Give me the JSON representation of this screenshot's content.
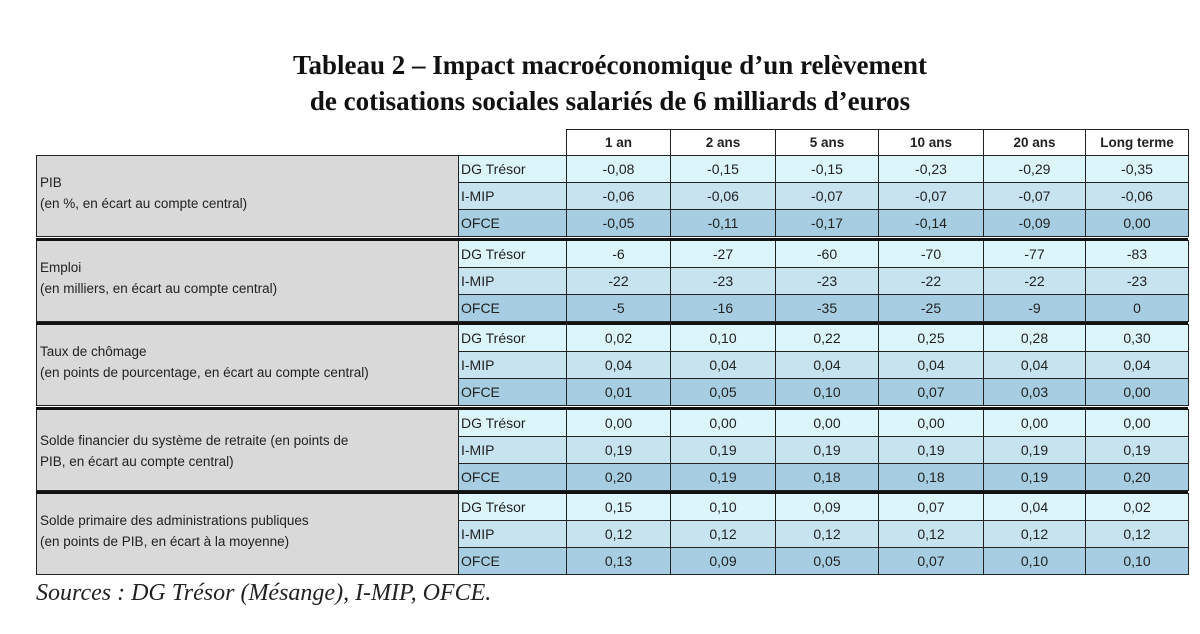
{
  "title": [
    "Tableau 2 – Impact macroéconomique d’un relèvement",
    "de cotisations sociales salariés de 6 milliards d’euros"
  ],
  "table": {
    "columns": [
      "1 an",
      "2 ans",
      "5 ans",
      "10 ans",
      "20 ans",
      "Long terme"
    ],
    "groups": [
      {
        "label": [
          "PIB",
          "(en %, en écart au compte central)"
        ],
        "rows": [
          {
            "model": "DG Trésor",
            "values": [
              "-0,08",
              "-0,15",
              "-0,15",
              "-0,23",
              "-0,29",
              "-0,35"
            ]
          },
          {
            "model": "I-MIP",
            "values": [
              "-0,06",
              "-0,06",
              "-0,07",
              "-0,07",
              "-0,07",
              "-0,06"
            ]
          },
          {
            "model": "OFCE",
            "values": [
              "-0,05",
              "-0,11",
              "-0,17",
              "-0,14",
              "-0,09",
              "0,00"
            ]
          }
        ]
      },
      {
        "label": [
          "Emploi",
          "(en milliers, en écart au compte central)"
        ],
        "rows": [
          {
            "model": "DG Trésor",
            "values": [
              "-6",
              "-27",
              "-60",
              "-70",
              "-77",
              "-83"
            ]
          },
          {
            "model": "I-MIP",
            "values": [
              "-22",
              "-23",
              "-23",
              "-22",
              "-22",
              "-23"
            ]
          },
          {
            "model": "OFCE",
            "values": [
              "-5",
              "-16",
              "-35",
              "-25",
              "-9",
              "0"
            ]
          }
        ]
      },
      {
        "label": [
          "Taux de chômage",
          "(en points de pourcentage, en écart au compte central)"
        ],
        "rows": [
          {
            "model": "DG Trésor",
            "values": [
              "0,02",
              "0,10",
              "0,22",
              "0,25",
              "0,28",
              "0,30"
            ]
          },
          {
            "model": "I-MIP",
            "values": [
              "0,04",
              "0,04",
              "0,04",
              "0,04",
              "0,04",
              "0,04"
            ]
          },
          {
            "model": "OFCE",
            "values": [
              "0,01",
              "0,05",
              "0,10",
              "0,07",
              "0,03",
              "0,00"
            ]
          }
        ]
      },
      {
        "label": [
          "Solde financier du système de retraite (en points de",
          "PIB, en écart au compte central)"
        ],
        "rows": [
          {
            "model": "DG Trésor",
            "values": [
              "0,00",
              "0,00",
              "0,00",
              "0,00",
              "0,00",
              "0,00"
            ]
          },
          {
            "model": "I-MIP",
            "values": [
              "0,19",
              "0,19",
              "0,19",
              "0,19",
              "0,19",
              "0,19"
            ]
          },
          {
            "model": "OFCE",
            "values": [
              "0,20",
              "0,19",
              "0,18",
              "0,18",
              "0,19",
              "0,20"
            ]
          }
        ]
      },
      {
        "label": [
          "Solde primaire des administrations publiques",
          "(en points de PIB, en écart à la moyenne)"
        ],
        "rows": [
          {
            "model": "DG Trésor",
            "values": [
              "0,15",
              "0,10",
              "0,09",
              "0,07",
              "0,04",
              "0,02"
            ]
          },
          {
            "model": "I-MIP",
            "values": [
              "0,12",
              "0,12",
              "0,12",
              "0,12",
              "0,12",
              "0,12"
            ]
          },
          {
            "model": "OFCE",
            "values": [
              "0,13",
              "0,09",
              "0,05",
              "0,07",
              "0,10",
              "0,10"
            ]
          }
        ]
      }
    ]
  },
  "sources": "Sources : DG Trésor (Mésange), I-MIP, OFCE."
}
